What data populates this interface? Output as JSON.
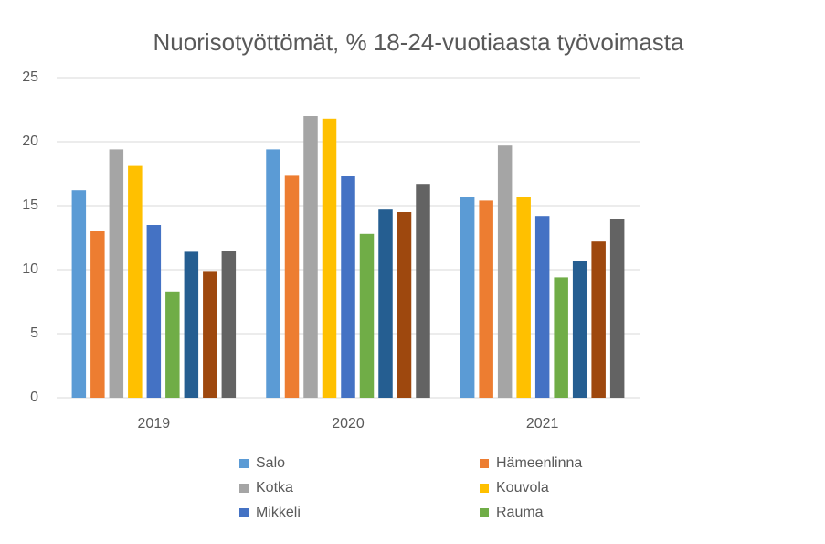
{
  "chart_data": {
    "type": "bar",
    "title": "Nuorisotyöttömät, % 18-24-vuotiaasta työvoimasta",
    "categories": [
      "2019",
      "2020",
      "2021"
    ],
    "series": [
      {
        "name": "Salo",
        "color": "#5b9bd5",
        "values": [
          16.2,
          19.4,
          15.7
        ]
      },
      {
        "name": "Hämeenlinna",
        "color": "#ed7d31",
        "values": [
          13.0,
          17.4,
          15.4
        ]
      },
      {
        "name": "Kotka",
        "color": "#a5a5a5",
        "values": [
          19.4,
          22.0,
          19.7
        ]
      },
      {
        "name": "Kouvola",
        "color": "#ffc000",
        "values": [
          18.1,
          21.8,
          15.7
        ]
      },
      {
        "name": "Mikkeli",
        "color": "#4472c4",
        "values": [
          13.5,
          17.3,
          14.2
        ]
      },
      {
        "name": "Rauma",
        "color": "#70ad47",
        "values": [
          8.3,
          12.8,
          9.4
        ]
      },
      {
        "color": "#255e91",
        "values": [
          11.4,
          14.7,
          10.7
        ]
      },
      {
        "color": "#9e480e",
        "values": [
          9.9,
          14.5,
          12.2
        ]
      },
      {
        "color": "#636363",
        "values": [
          11.5,
          16.7,
          14.0
        ]
      }
    ],
    "ylim": [
      0,
      25
    ],
    "yticks": [
      0,
      5,
      10,
      15,
      20,
      25
    ],
    "grid": true,
    "legend": "bottom"
  }
}
